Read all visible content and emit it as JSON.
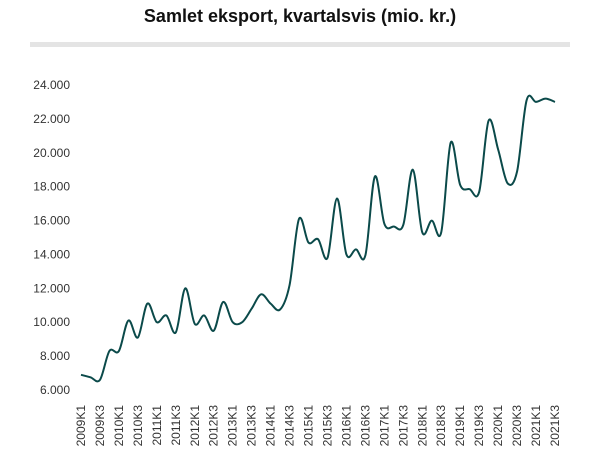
{
  "chart_data": {
    "type": "line",
    "title": "Samlet eksport, kvartalsvis (mio. kr.)",
    "xlabel": "",
    "ylabel": "",
    "ylim": [
      6000,
      24000
    ],
    "y_ticks": [
      6000,
      8000,
      10000,
      12000,
      14000,
      16000,
      18000,
      20000,
      22000,
      24000
    ],
    "y_tick_labels": [
      "6.000",
      "8.000",
      "10.000",
      "12.000",
      "14.000",
      "16.000",
      "18.000",
      "20.000",
      "22.000",
      "24.000"
    ],
    "x_tick_labels": [
      "2009K1",
      "2009K3",
      "2010K1",
      "2010K3",
      "2011K1",
      "2011K3",
      "2012K1",
      "2012K3",
      "2013K1",
      "2013K3",
      "2014K1",
      "2014K3",
      "2015K1",
      "2015K3",
      "2016K1",
      "2016K3",
      "2017K1",
      "2017K3",
      "2018K1",
      "2018K3",
      "2019K1",
      "2019K3",
      "2020K1",
      "2020K3",
      "2021K1",
      "2021K3"
    ],
    "grid": false,
    "line_color": "#0b4a4a",
    "series": [
      {
        "name": "",
        "x": [
          "2009K1",
          "2009K2",
          "2009K3",
          "2009K4",
          "2010K1",
          "2010K2",
          "2010K3",
          "2010K4",
          "2011K1",
          "2011K2",
          "2011K3",
          "2011K4",
          "2012K1",
          "2012K2",
          "2012K3",
          "2012K4",
          "2013K1",
          "2013K2",
          "2013K3",
          "2013K4",
          "2014K1",
          "2014K2",
          "2014K3",
          "2014K4",
          "2015K1",
          "2015K2",
          "2015K3",
          "2015K4",
          "2016K1",
          "2016K2",
          "2016K3",
          "2016K4",
          "2017K1",
          "2017K2",
          "2017K3",
          "2017K4",
          "2018K1",
          "2018K2",
          "2018K3",
          "2018K4",
          "2019K1",
          "2019K2",
          "2019K3",
          "2019K4",
          "2020K1",
          "2020K2",
          "2020K3",
          "2020K4",
          "2021K1",
          "2021K2",
          "2021K3"
        ],
        "values": [
          6900,
          6750,
          6600,
          8300,
          8300,
          10100,
          9100,
          11100,
          10000,
          10400,
          9400,
          12000,
          9900,
          10400,
          9500,
          11200,
          10000,
          10000,
          10800,
          11650,
          11100,
          10750,
          12200,
          16100,
          14700,
          14900,
          13800,
          17300,
          14000,
          14300,
          13950,
          18600,
          15800,
          15650,
          15750,
          19000,
          15300,
          16000,
          15300,
          20600,
          18100,
          17850,
          17700,
          21900,
          20200,
          18200,
          18900,
          23100,
          23000,
          23200,
          23000
        ]
      }
    ]
  }
}
